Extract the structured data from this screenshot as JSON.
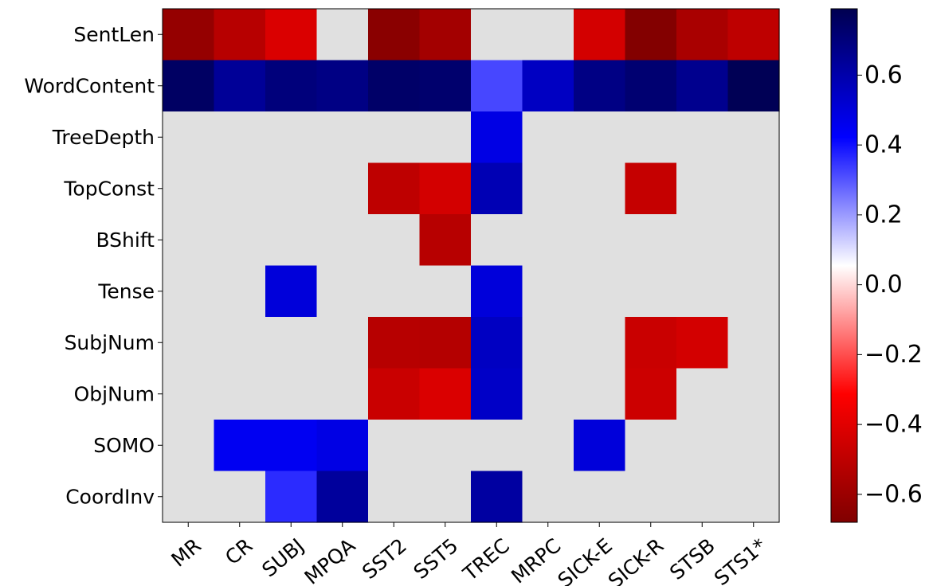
{
  "chart_data": {
    "type": "heatmap",
    "title": "",
    "xlabel": "",
    "ylabel": "",
    "x_categories": [
      "MR",
      "CR",
      "SUBJ",
      "MPQA",
      "SST2",
      "SST5",
      "TREC",
      "MRPC",
      "SICK-E",
      "SICK-R",
      "STSB",
      "STS1*"
    ],
    "y_categories": [
      "SentLen",
      "WordContent",
      "TreeDepth",
      "TopConst",
      "BShift",
      "Tense",
      "SubjNum",
      "ObjNum",
      "SOMO",
      "CoordInv"
    ],
    "values": [
      [
        -0.62,
        -0.52,
        -0.42,
        null,
        -0.65,
        -0.58,
        null,
        null,
        -0.44,
        -0.67,
        -0.56,
        -0.5
      ],
      [
        0.75,
        0.64,
        0.7,
        0.68,
        0.74,
        0.73,
        0.32,
        0.55,
        0.68,
        0.72,
        0.66,
        0.78
      ],
      [
        null,
        null,
        null,
        null,
        null,
        null,
        0.48,
        null,
        null,
        null,
        null,
        null
      ],
      [
        null,
        null,
        null,
        null,
        -0.5,
        -0.44,
        0.58,
        null,
        null,
        -0.48,
        null,
        null
      ],
      [
        null,
        null,
        null,
        null,
        null,
        -0.52,
        null,
        null,
        null,
        null,
        null,
        null
      ],
      [
        null,
        null,
        0.5,
        null,
        null,
        null,
        0.5,
        null,
        null,
        null,
        null,
        null
      ],
      [
        null,
        null,
        null,
        null,
        -0.52,
        -0.53,
        0.55,
        null,
        null,
        -0.47,
        -0.44,
        null
      ],
      [
        null,
        null,
        null,
        null,
        -0.47,
        -0.42,
        0.54,
        null,
        null,
        -0.46,
        null,
        null
      ],
      [
        null,
        0.45,
        0.45,
        0.48,
        null,
        null,
        null,
        null,
        0.5,
        null,
        null,
        null
      ],
      [
        null,
        null,
        0.36,
        0.63,
        null,
        null,
        0.62,
        null,
        null,
        null,
        null,
        null
      ]
    ],
    "null_color": "#e0e0e0",
    "colormap": "seismic_r",
    "vmin": -0.68,
    "vmax": 0.79,
    "colorbar": {
      "position": "right",
      "ticks": [
        -0.6,
        -0.4,
        -0.2,
        0.0,
        0.2,
        0.4,
        0.6
      ],
      "tick_labels": [
        "−0.6",
        "−0.4",
        "−0.2",
        "0.0",
        "0.2",
        "0.4",
        "0.6"
      ]
    }
  }
}
